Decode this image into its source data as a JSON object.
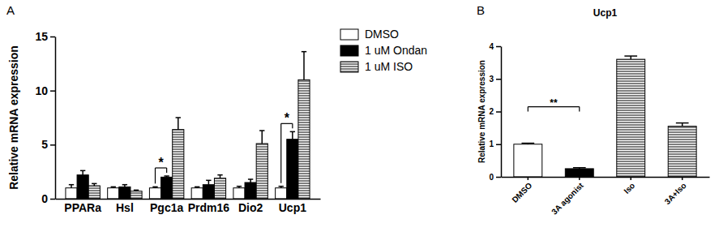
{
  "chart_data": [
    {
      "type": "bar",
      "categories": [
        "PPARa",
        "Hsl",
        "Pgc1a",
        "Prdm16",
        "Dio2",
        "Ucp1"
      ],
      "y_label": "Relative mRNA expression",
      "ylim": [
        0,
        15
      ],
      "yticks": [
        0,
        5,
        10,
        15
      ],
      "grid": false,
      "legend": "right",
      "series": [
        {
          "name": "DMSO",
          "color": "#ffffff",
          "line_style": "solid",
          "values": [
            1.0,
            1.0,
            1.0,
            1.0,
            1.0,
            1.0
          ],
          "errors": [
            0.3,
            0.1,
            0.1,
            0.1,
            0.15,
            0.15
          ]
        },
        {
          "name": "1 uM Ondan",
          "color": "#000000",
          "line_style": "solid",
          "values": [
            2.2,
            1.1,
            2.0,
            1.3,
            1.5,
            5.5
          ],
          "errors": [
            0.4,
            0.2,
            0.1,
            0.4,
            0.3,
            0.7
          ]
        },
        {
          "name": "1 uM ISO",
          "color": "#ffffff",
          "line_style": "hatched",
          "values": [
            1.2,
            0.7,
            6.4,
            1.9,
            5.1,
            11.0
          ],
          "errors": [
            0.2,
            0.1,
            1.1,
            0.3,
            1.2,
            2.6
          ]
        }
      ],
      "annotations": [
        {
          "text": "A"
        },
        {
          "text": "*",
          "category": "Pgc1a",
          "series": [
            "DMSO",
            "1 uM Ondan"
          ]
        },
        {
          "text": "*",
          "category": "Ucp1",
          "series": [
            "DMSO",
            "1 uM Ondan"
          ]
        }
      ]
    },
    {
      "type": "bar",
      "title": "Ucp1",
      "categories": [
        "DMSO",
        "3A agonist",
        "Iso",
        "3A+Iso"
      ],
      "values": [
        1.0,
        0.25,
        3.6,
        1.55
      ],
      "errors": [
        0.03,
        0.03,
        0.1,
        0.1
      ],
      "colors": [
        "#ffffff",
        "#000000",
        "#ffffff",
        "#ffffff"
      ],
      "line_style": [
        "solid",
        "solid",
        "hatched",
        "hatched"
      ],
      "y_label": "Relative mRNA expression",
      "ylim": [
        0,
        4
      ],
      "yticks": [
        0,
        1,
        2,
        3,
        4
      ],
      "grid": false,
      "annotations": [
        {
          "text": "B"
        },
        {
          "text": "**",
          "categories": [
            "DMSO",
            "3A agonist"
          ]
        }
      ]
    }
  ]
}
